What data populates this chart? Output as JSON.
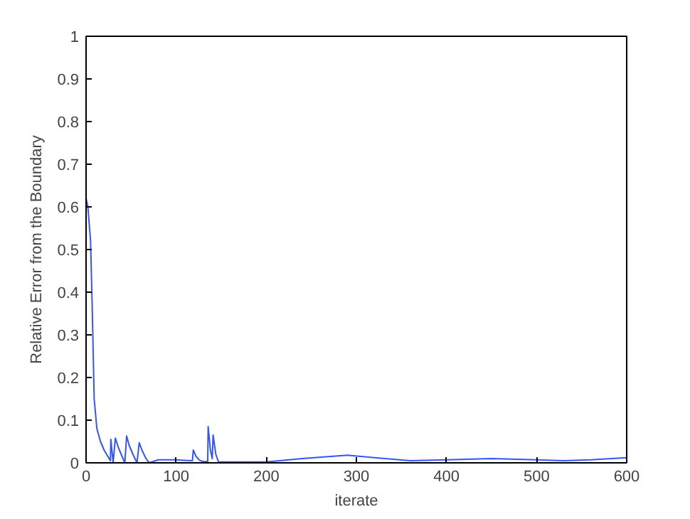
{
  "chart_data": {
    "type": "line",
    "xlabel": "iterate",
    "ylabel": "Relative Error from the Boundary",
    "xlim": [
      0,
      600
    ],
    "ylim": [
      0,
      1
    ],
    "xticks": [
      0,
      100,
      200,
      300,
      400,
      500,
      600
    ],
    "yticks": [
      0,
      0.1,
      0.2,
      0.3,
      0.4,
      0.5,
      0.6,
      0.7,
      0.8,
      0.9,
      1
    ],
    "grid": false,
    "series": [
      {
        "color": "#3355ff",
        "x": [
          0,
          2,
          5,
          7,
          9,
          12,
          16,
          20,
          25,
          27,
          27.5,
          30,
          32.5,
          36,
          40,
          43,
          45,
          48,
          52,
          56.5,
          59,
          62,
          66,
          70,
          80,
          100,
          118,
          119,
          122,
          126,
          130,
          135,
          135.5,
          138,
          140,
          141,
          144,
          147,
          170,
          200,
          240,
          290,
          320,
          360,
          400,
          450,
          500,
          530,
          560,
          600
        ],
        "values": [
          0.62,
          0.6,
          0.52,
          0.35,
          0.15,
          0.08,
          0.05,
          0.03,
          0.012,
          0.005,
          0.055,
          0.0,
          0.058,
          0.035,
          0.015,
          0.0,
          0.063,
          0.04,
          0.02,
          0.0,
          0.047,
          0.03,
          0.012,
          0.0,
          0.007,
          0.007,
          0.005,
          0.03,
          0.015,
          0.006,
          0.003,
          0.003,
          0.085,
          0.03,
          0.01,
          0.065,
          0.02,
          0.002,
          0.002,
          0.002,
          0.01,
          0.018,
          0.012,
          0.005,
          0.007,
          0.01,
          0.007,
          0.005,
          0.007,
          0.012
        ]
      }
    ]
  }
}
